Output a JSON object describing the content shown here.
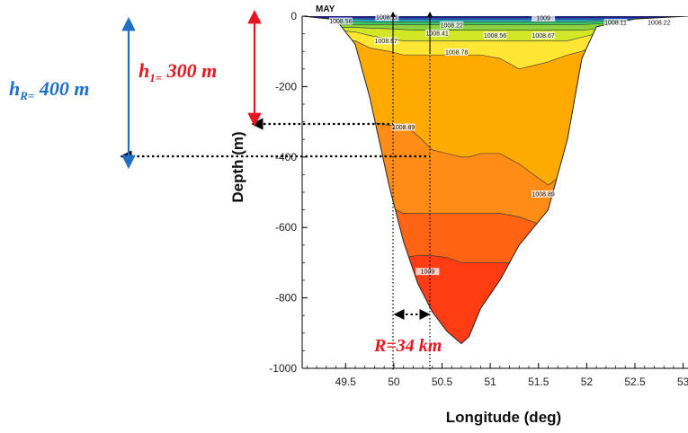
{
  "chart_data": {
    "type": "area",
    "title": "MAY",
    "xlabel": "Longitude (deg)",
    "ylabel": "Depth (m)",
    "xlim": [
      49.05,
      53.05
    ],
    "ylim": [
      -1000,
      0
    ],
    "xticks": [
      {
        "value": 49.5,
        "label": "49.5"
      },
      {
        "value": 50,
        "label": "50"
      },
      {
        "value": 50.5,
        "label": "50.5"
      },
      {
        "value": 51,
        "label": "51"
      },
      {
        "value": 51.5,
        "label": "51.5"
      },
      {
        "value": 52,
        "label": "52"
      },
      {
        "value": 52.5,
        "label": "52.5"
      },
      {
        "value": 53,
        "label": "53"
      }
    ],
    "yticks": [
      {
        "value": 0,
        "label": "0"
      },
      {
        "value": -200,
        "label": "-200"
      },
      {
        "value": -400,
        "label": "-400"
      },
      {
        "value": -600,
        "label": "-600"
      },
      {
        "value": -800,
        "label": "-800"
      },
      {
        "value": -1000,
        "label": "-1000"
      }
    ],
    "basin_bottom": [
      [
        49.05,
        0
      ],
      [
        49.4,
        -10
      ],
      [
        49.6,
        -80
      ],
      [
        49.75,
        -230
      ],
      [
        49.95,
        -480
      ],
      [
        50.1,
        -640
      ],
      [
        50.25,
        -760
      ],
      [
        50.4,
        -840
      ],
      [
        50.55,
        -895
      ],
      [
        50.7,
        -930
      ],
      [
        50.78,
        -910
      ],
      [
        50.9,
        -830
      ],
      [
        51.1,
        -750
      ],
      [
        51.3,
        -650
      ],
      [
        51.6,
        -550
      ],
      [
        51.8,
        -350
      ],
      [
        51.95,
        -120
      ],
      [
        52.1,
        -30
      ],
      [
        52.5,
        -8
      ],
      [
        53.05,
        0
      ]
    ],
    "isolines": [
      {
        "depths": [
          -5,
          -5,
          -5,
          -5,
          -5,
          -5,
          -5,
          -5,
          -5,
          -5,
          -5,
          -5,
          -5,
          -5,
          -5,
          -5,
          -5,
          -5,
          -5,
          -5
        ],
        "color": "#1414b4"
      },
      {
        "depths": [
          -8,
          -8,
          -8,
          -10,
          -10,
          -10,
          -10,
          -10,
          -10,
          -10,
          -10,
          -10,
          -10,
          -10,
          -10,
          -10,
          -10,
          -10,
          -10,
          -8
        ],
        "color": "#1e64dc"
      },
      {
        "depths": [
          -15,
          -15,
          -15,
          -16,
          -16,
          -16,
          -16,
          -16,
          -16,
          -16,
          -16,
          -16,
          -16,
          -16,
          -16,
          -16,
          -16,
          -15,
          -12,
          -10
        ],
        "color": "#28b4c8"
      },
      {
        "depths": [
          -24,
          -24,
          -24,
          -24,
          -24,
          -24,
          -24,
          -24,
          -24,
          -24,
          -24,
          -24,
          -24,
          -24,
          -24,
          -24,
          -24,
          -22,
          -18,
          -16
        ],
        "color": "#3cc864"
      },
      {
        "depths": [
          -32,
          -32,
          -32,
          -34,
          -36,
          -38,
          -40,
          -40,
          -40,
          -40,
          -40,
          -40,
          -40,
          -40,
          -40,
          -40,
          -40,
          -36,
          -28,
          -24
        ],
        "color": "#8cd23c"
      },
      {
        "depths": [
          -40,
          -40,
          -45,
          -55,
          -65,
          -70,
          -70,
          -70,
          -70,
          -70,
          -70,
          -70,
          -70,
          -70,
          -70,
          -70,
          -60,
          -50,
          -40,
          -34
        ],
        "color": "#d2e628"
      },
      {
        "depths": [
          -60,
          -60,
          -70,
          -90,
          -100,
          -110,
          -110,
          -110,
          -110,
          -110,
          -110,
          -110,
          -120,
          -150,
          -130,
          -110,
          -100,
          -80,
          -60,
          -50
        ],
        "color": "#ffe632"
      },
      {
        "depths": [
          -220,
          -220,
          -240,
          -300,
          -310,
          -305,
          -340,
          -380,
          -390,
          -400,
          -400,
          -390,
          -390,
          -420,
          -480,
          -440,
          -380,
          -300,
          -220,
          -200
        ],
        "color": "#ffaa00"
      },
      {
        "depths": [
          -380,
          -380,
          -420,
          -480,
          -540,
          -560,
          -560,
          -560,
          -560,
          -560,
          -560,
          -560,
          -560,
          -570,
          -600,
          -600,
          -600,
          -600,
          -600,
          -600
        ],
        "color": "#ff8c14"
      },
      {
        "depths": [
          -640,
          -640,
          -660,
          -680,
          -690,
          -685,
          -680,
          -680,
          -685,
          -700,
          -700,
          -700,
          -700,
          -700,
          -700,
          -700,
          -700,
          -700,
          -700,
          -700
        ],
        "color": "#ff6414"
      },
      {
        "depths": [
          -1000,
          -1000,
          -1000,
          -1000,
          -1000,
          -1000,
          -1000,
          -1000,
          -1000,
          -1000,
          -1000,
          -1000,
          -1000,
          -1000,
          -1000,
          -1000,
          -1000,
          -1000,
          -1000,
          -1000
        ],
        "color": "#ff3c14"
      }
    ],
    "contour_labels": [
      {
        "text": "1008.56",
        "lon": 49.45,
        "depth": -14
      },
      {
        "text": "1008.11",
        "lon": 49.93,
        "depth": -3
      },
      {
        "text": "1008.67",
        "lon": 49.92,
        "depth": -70
      },
      {
        "text": "1008.41",
        "lon": 50.45,
        "depth": -48
      },
      {
        "text": "1008.22",
        "lon": 50.6,
        "depth": -25
      },
      {
        "text": "1008.78",
        "lon": 50.65,
        "depth": -102
      },
      {
        "text": "1008.56",
        "lon": 51.05,
        "depth": -55
      },
      {
        "text": "1009",
        "lon": 51.55,
        "depth": -5
      },
      {
        "text": "1008.67",
        "lon": 51.55,
        "depth": -55
      },
      {
        "text": "1008.11",
        "lon": 52.3,
        "depth": -18
      },
      {
        "text": "1008.22",
        "lon": 52.75,
        "depth": -18
      },
      {
        "text": "1008.89",
        "lon": 50.1,
        "depth": -315
      },
      {
        "text": "1008.89",
        "lon": 51.55,
        "depth": -505
      },
      {
        "text": "1009",
        "lon": 50.35,
        "depth": -725
      }
    ],
    "annotations": [
      {
        "lon": 50.03,
        "depth": -300,
        "label": "h1 = 300 m"
      },
      {
        "lon": 50.38,
        "depth": -400,
        "label": "hR = 400 m"
      },
      {
        "lon_from": 50.03,
        "lon_to": 50.38,
        "depth": -870,
        "label": "R = 34 km"
      }
    ]
  },
  "annotations": {
    "h_r": {
      "main": "h",
      "sub": "R=",
      "tail": " 400 m",
      "color": "#1f6fc4"
    },
    "h_1": {
      "main": "h",
      "sub": "1=",
      "tail": " 300 m",
      "color": "#e8141e"
    },
    "r_label": {
      "text": "R=34 km",
      "color": "#e8141e"
    }
  }
}
